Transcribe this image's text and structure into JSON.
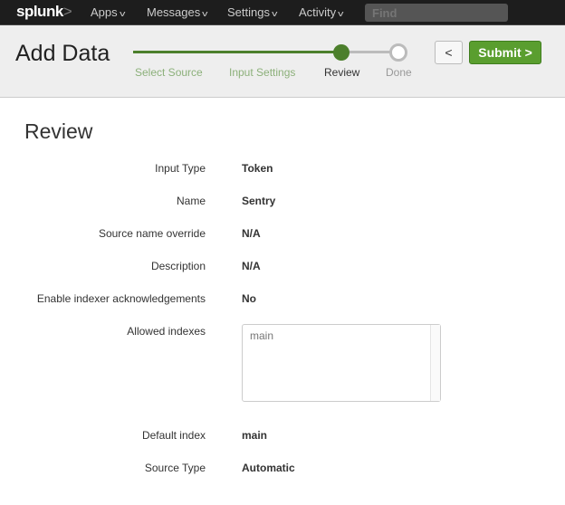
{
  "topbar": {
    "logo": "splunk>",
    "nav": [
      "Apps",
      "Messages",
      "Settings",
      "Activity"
    ],
    "find_placeholder": "Find"
  },
  "header": {
    "title": "Add Data",
    "steps": [
      {
        "label": "Select Source",
        "state": "complete"
      },
      {
        "label": "Input Settings",
        "state": "complete"
      },
      {
        "label": "Review",
        "state": "current"
      },
      {
        "label": "Done",
        "state": "pending"
      }
    ],
    "back_label": "<",
    "submit_label": "Submit >"
  },
  "colors": {
    "accent": "#5a9e2f",
    "step_done": "#4c7f2c"
  },
  "review": {
    "heading": "Review",
    "fields": [
      {
        "label": "Input Type",
        "value": "Token"
      },
      {
        "label": "Name",
        "value": "Sentry"
      },
      {
        "label": "Source name override",
        "value": "N/A"
      },
      {
        "label": "Description",
        "value": "N/A"
      },
      {
        "label": "Enable indexer acknowledgements",
        "value": "No"
      }
    ],
    "allowed_indexes": {
      "label": "Allowed indexes",
      "items": [
        "main"
      ]
    },
    "fields2": [
      {
        "label": "Default index",
        "value": "main"
      },
      {
        "label": "Source Type",
        "value": "Automatic"
      }
    ]
  }
}
